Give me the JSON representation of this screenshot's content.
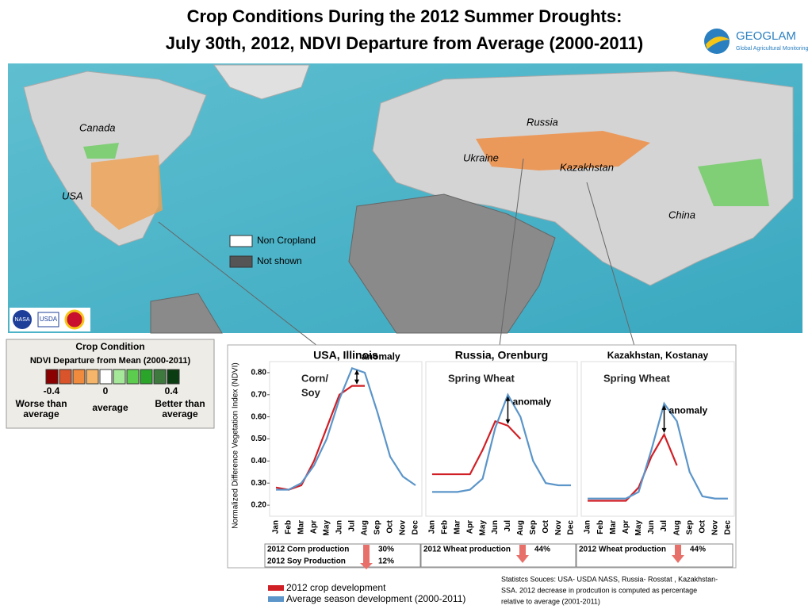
{
  "header": {
    "title_line1": "Crop Conditions During the 2012 Summer Droughts:",
    "title_line2": "July 30th, 2012, NDVI Departure from Average (2000-2011)",
    "logo": "GEOGLAM",
    "logo_sub": "Global Agricultural Monitoring"
  },
  "map": {
    "labels": [
      "Canada",
      "USA",
      "Russia",
      "Ukraine",
      "Kazakhstan",
      "China"
    ],
    "legend": [
      "Non Cropland",
      "Not shown"
    ],
    "logos": [
      "NASA",
      "USDA"
    ]
  },
  "condition_legend": {
    "title": "Crop Condition",
    "subtitle": "NDVI Departure from Mean (2000-2011)",
    "colors": [
      "#8b0000",
      "#d9542a",
      "#f08a3c",
      "#f5b56a",
      "#ffffff",
      "#a6e89a",
      "#5ccc4f",
      "#2aa52a",
      "#3e7a3e",
      "#0b3d12"
    ],
    "ticks": [
      "-0.4",
      "0",
      "0.4"
    ],
    "labels": [
      "Worse than average",
      "average",
      "Better than average"
    ]
  },
  "y_axis_label": "Normalized Difference Vegetation Index (NDVI)",
  "chart_data": [
    {
      "type": "line",
      "title": "USA, Illinois",
      "crop": [
        "Corn/",
        "Soy"
      ],
      "annotation": "anomaly",
      "categories": [
        "Jan",
        "Feb",
        "Mar",
        "Apr",
        "May",
        "Jun",
        "Jul",
        "Aug",
        "Sep",
        "Oct",
        "Nov",
        "Dec"
      ],
      "ylim": [
        0.15,
        0.85
      ],
      "yticks": [
        {
          "value": 0.2,
          "label": "0.20"
        },
        {
          "value": 0.3,
          "label": "0.30"
        },
        {
          "value": 0.4,
          "label": "0.40"
        },
        {
          "value": 0.5,
          "label": "0.50"
        },
        {
          "value": 0.6,
          "label": "0.60"
        },
        {
          "value": 0.7,
          "label": "0.70"
        },
        {
          "value": 0.8,
          "label": "0.80"
        }
      ],
      "series": [
        {
          "name": "2012 crop development",
          "color": "#d01f25",
          "values": [
            0.28,
            0.27,
            0.29,
            0.4,
            0.55,
            0.7,
            0.74,
            0.74,
            null,
            null,
            null,
            null
          ]
        },
        {
          "name": "Average season development (2000-2011)",
          "color": "#5b95c9",
          "values": [
            0.27,
            0.27,
            0.3,
            0.38,
            0.5,
            0.68,
            0.82,
            0.8,
            0.62,
            0.42,
            0.33,
            0.29
          ]
        }
      ]
    },
    {
      "type": "line",
      "title": "Russia, Orenburg",
      "crop": [
        "Spring Wheat"
      ],
      "annotation": "anomaly",
      "categories": [
        "Jan",
        "Feb",
        "Mar",
        "Apr",
        "May",
        "Jun",
        "Jul",
        "Aug",
        "Sep",
        "Oct",
        "Nov",
        "Dec"
      ],
      "ylim": [
        0.15,
        0.85
      ],
      "series": [
        {
          "name": "2012 crop development",
          "color": "#d01f25",
          "values": [
            0.34,
            0.34,
            0.34,
            0.34,
            0.45,
            0.58,
            0.56,
            0.5,
            null,
            null,
            null,
            null
          ]
        },
        {
          "name": "Average season development (2000-2011)",
          "color": "#5b95c9",
          "values": [
            0.26,
            0.26,
            0.26,
            0.27,
            0.32,
            0.55,
            0.7,
            0.6,
            0.4,
            0.3,
            0.29,
            0.29
          ]
        }
      ]
    },
    {
      "type": "line",
      "title": "Kazakhstan, Kostanay",
      "crop": [
        "Spring Wheat"
      ],
      "annotation": "anomaly",
      "categories": [
        "Jan",
        "Feb",
        "Mar",
        "Apr",
        "May",
        "Jun",
        "Jul",
        "Aug",
        "Sep",
        "Oct",
        "Nov",
        "Dec"
      ],
      "ylim": [
        0.15,
        0.85
      ],
      "series": [
        {
          "name": "2012 crop development",
          "color": "#d01f25",
          "values": [
            0.22,
            0.22,
            0.22,
            0.22,
            0.28,
            0.42,
            0.52,
            0.38,
            null,
            null,
            null,
            null
          ]
        },
        {
          "name": "Average season development (2000-2011)",
          "color": "#5b95c9",
          "values": [
            0.23,
            0.23,
            0.23,
            0.23,
            0.26,
            0.45,
            0.66,
            0.58,
            0.35,
            0.24,
            0.23,
            0.23
          ]
        }
      ]
    }
  ],
  "production": [
    [
      {
        "label": "2012 Corn production",
        "value": "30%"
      },
      {
        "label": "2012 Soy Production",
        "value": "12%"
      }
    ],
    [
      {
        "label": "2012 Wheat production",
        "value": "44%"
      }
    ],
    [
      {
        "label": "2012 Wheat production",
        "value": "44%"
      }
    ]
  ],
  "sources": [
    "Statistcs Souces: USA- USDA NASS, Russia- Rosstat , Kazakhstan-",
    "SSA.  2012 decrease in prodcution is computed  as percentage",
    "relative to average (2001-2011)"
  ]
}
